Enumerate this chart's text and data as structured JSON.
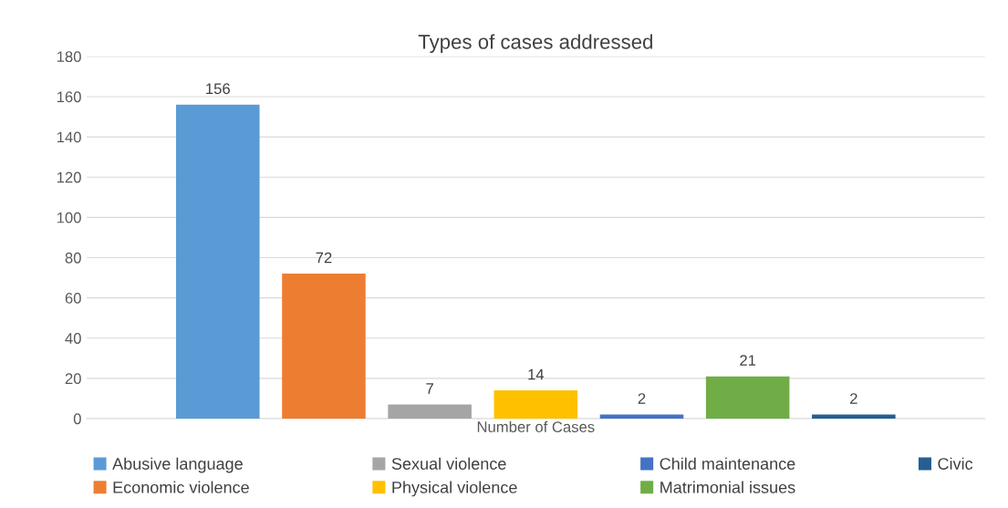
{
  "chart_data": {
    "type": "bar",
    "title": "Types of cases addressed",
    "categories": [
      "Number of Cases"
    ],
    "series": [
      {
        "name": "Abusive language",
        "color": "#5b9bd5",
        "values": [
          156
        ]
      },
      {
        "name": "Economic violence",
        "color": "#ed7d31",
        "values": [
          72
        ]
      },
      {
        "name": "Sexual violence",
        "color": "#a5a5a5",
        "values": [
          7
        ]
      },
      {
        "name": "Physical violence",
        "color": "#ffc000",
        "values": [
          14
        ]
      },
      {
        "name": "Child maintenance",
        "color": "#4472c4",
        "values": [
          2
        ]
      },
      {
        "name": "Matrimonial issues",
        "color": "#70ad47",
        "values": [
          21
        ]
      },
      {
        "name": "Civic",
        "color": "#255e91",
        "values": [
          2
        ]
      }
    ],
    "ylim": [
      0,
      180
    ],
    "yticks": [
      0,
      20,
      40,
      60,
      80,
      100,
      120,
      140,
      160,
      180
    ],
    "grid": "y",
    "legend": "bottom",
    "data_labels": true
  }
}
